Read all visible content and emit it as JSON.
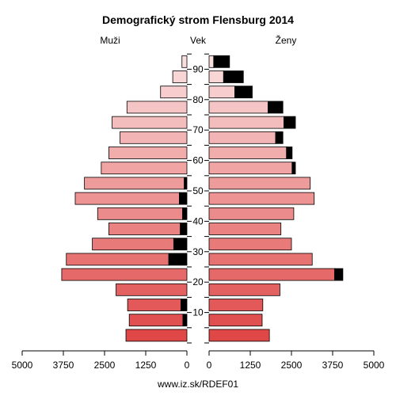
{
  "chart_data": {
    "type": "bar",
    "subtype": "population-pyramid",
    "title": "Demografický strom Flensburg 2014",
    "left_label": "Muži",
    "center_label": "Vek",
    "right_label": "Ženy",
    "footer": "www.iz.sk/RDEF01",
    "x_ticks_left": [
      "5000",
      "3750",
      "2500",
      "1250",
      "0"
    ],
    "x_ticks_right": [
      "0",
      "1250",
      "2500",
      "3750",
      "5000"
    ],
    "xlim": [
      0,
      5000
    ],
    "age_ticks": [
      "10",
      "20",
      "30",
      "40",
      "50",
      "60",
      "70",
      "80",
      "90"
    ],
    "age_groups": [
      "0-4",
      "5-9",
      "10-14",
      "15-19",
      "20-24",
      "25-29",
      "30-34",
      "35-39",
      "40-44",
      "45-49",
      "50-54",
      "55-59",
      "60-64",
      "65-69",
      "70-74",
      "75-79",
      "80-84",
      "85-89",
      "90+"
    ],
    "series": [
      {
        "name": "Muži",
        "total": [
          1850,
          1750,
          1800,
          2150,
          3800,
          3660,
          2870,
          2370,
          2710,
          3390,
          3110,
          2600,
          2370,
          2030,
          2270,
          1820,
          800,
          430,
          150
        ],
        "foreign": [
          0,
          120,
          180,
          0,
          0,
          550,
          400,
          200,
          130,
          230,
          80,
          0,
          0,
          0,
          0,
          0,
          0,
          0,
          0
        ]
      },
      {
        "name": "Ženy",
        "total": [
          1830,
          1610,
          1630,
          2150,
          4060,
          3130,
          2500,
          2180,
          2570,
          3190,
          3070,
          2620,
          2520,
          2240,
          2620,
          2240,
          1310,
          1040,
          620
        ],
        "foreign": [
          0,
          0,
          0,
          0,
          250,
          0,
          0,
          0,
          0,
          0,
          0,
          100,
          170,
          220,
          350,
          450,
          530,
          600,
          480
        ]
      }
    ]
  }
}
